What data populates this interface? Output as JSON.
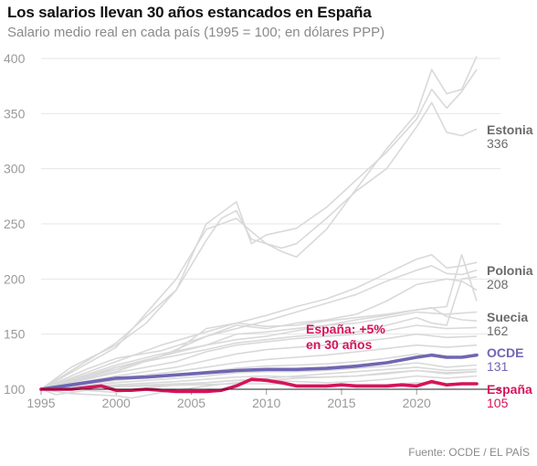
{
  "header": {
    "title": "Los salarios llevan 30 años estancados en España",
    "subtitle": "Salario medio real en cada país (1995 = 100; en dólares PPP)"
  },
  "footer": {
    "source": "Fuente: OCDE / EL PAÍS"
  },
  "annotation": {
    "line1": "España: +5%",
    "line2": "en 30 años"
  },
  "colors": {
    "background_line": "#d9d9d9",
    "oecd": "#6f66b3",
    "spain": "#d6135a",
    "label_gray": "#6b6b6b"
  },
  "chart_data": {
    "type": "line",
    "title": "Los salarios llevan 30 años estancados en España",
    "subtitle": "Salario medio real en cada país (1995 = 100; en dólares PPP)",
    "xlabel": "",
    "ylabel": "",
    "xlim": [
      1995,
      2024
    ],
    "ylim": [
      87,
      400
    ],
    "xticks": [
      1995,
      2000,
      2005,
      2010,
      2015,
      2020
    ],
    "yticks": [
      100,
      150,
      200,
      250,
      300,
      350,
      400
    ],
    "grid": true,
    "series": [
      {
        "name": "Estonia",
        "label_value": "336",
        "highlight": "gray",
        "x": [
          1995,
          1997,
          2000,
          2002,
          2004,
          2006,
          2007,
          2008,
          2009,
          2010,
          2011,
          2012,
          2014,
          2016,
          2018,
          2020,
          2021,
          2022,
          2023,
          2024
        ],
        "y": [
          100,
          120,
          140,
          160,
          190,
          235,
          255,
          262,
          236,
          232,
          228,
          232,
          255,
          280,
          300,
          338,
          360,
          333,
          330,
          336
        ]
      },
      {
        "name": "Polonia",
        "label_value": "208",
        "highlight": "gray",
        "x": [
          1995,
          1998,
          2000,
          2003,
          2006,
          2008,
          2010,
          2012,
          2014,
          2016,
          2018,
          2020,
          2021,
          2022,
          2023,
          2024
        ],
        "y": [
          100,
          118,
          128,
          135,
          148,
          155,
          162,
          170,
          178,
          186,
          198,
          208,
          212,
          205,
          204,
          208
        ]
      },
      {
        "name": "Suecia",
        "label_value": "162",
        "highlight": "gray",
        "x": [
          1995,
          1998,
          2000,
          2003,
          2006,
          2008,
          2010,
          2012,
          2014,
          2016,
          2018,
          2020,
          2021,
          2022,
          2023,
          2024
        ],
        "y": [
          100,
          110,
          120,
          130,
          140,
          145,
          148,
          153,
          158,
          163,
          167,
          172,
          174,
          166,
          163,
          162
        ]
      },
      {
        "name": "OCDE",
        "label_value": "131",
        "highlight": "oecd",
        "x": [
          1995,
          1997,
          2000,
          2002,
          2004,
          2006,
          2008,
          2010,
          2012,
          2014,
          2016,
          2018,
          2020,
          2021,
          2022,
          2023,
          2024
        ],
        "y": [
          100,
          104,
          110,
          111,
          113,
          115,
          117,
          118,
          118,
          119,
          121,
          124,
          129,
          131,
          129,
          129,
          131
        ]
      },
      {
        "name": "España",
        "label_value": "105",
        "highlight": "spain",
        "x": [
          1995,
          1997,
          1999,
          2000,
          2001,
          2002,
          2003,
          2004,
          2005,
          2006,
          2007,
          2008,
          2009,
          2010,
          2011,
          2012,
          2013,
          2014,
          2015,
          2016,
          2017,
          2018,
          2019,
          2020,
          2021,
          2022,
          2023,
          2024
        ],
        "y": [
          100,
          100,
          103,
          99,
          99,
          100,
          99,
          98,
          98,
          98,
          99,
          103,
          109,
          108,
          106,
          103,
          103,
          103,
          104,
          103,
          103,
          103,
          104,
          103,
          107,
          104,
          105,
          105
        ]
      },
      {
        "name": "",
        "highlight": "gray",
        "x": [
          1995,
          2000,
          2004,
          2006,
          2008,
          2009,
          2010,
          2012,
          2014,
          2016,
          2018,
          2020,
          2021,
          2022,
          2023,
          2024
        ],
        "y": [
          100,
          142,
          190,
          250,
          270,
          232,
          240,
          246,
          265,
          290,
          315,
          345,
          372,
          355,
          370,
          390
        ]
      },
      {
        "name": "",
        "highlight": "gray",
        "x": [
          1995,
          2000,
          2004,
          2006,
          2008,
          2009,
          2010,
          2011,
          2012,
          2014,
          2016,
          2018,
          2020,
          2021,
          2022,
          2023,
          2024
        ],
        "y": [
          100,
          138,
          200,
          245,
          255,
          243,
          232,
          225,
          220,
          245,
          282,
          318,
          350,
          390,
          368,
          372,
          402
        ]
      },
      {
        "name": "",
        "highlight": "gray",
        "x": [
          1995,
          2000,
          2003,
          2006,
          2008,
          2010,
          2012,
          2014,
          2016,
          2018,
          2020,
          2021,
          2022,
          2023,
          2024
        ],
        "y": [
          100,
          125,
          140,
          152,
          160,
          167,
          175,
          182,
          192,
          205,
          218,
          222,
          210,
          212,
          215
        ]
      },
      {
        "name": "",
        "highlight": "gray",
        "x": [
          1995,
          2000,
          2003,
          2006,
          2008,
          2010,
          2012,
          2014,
          2016,
          2018,
          2020,
          2022,
          2023,
          2024
        ],
        "y": [
          100,
          118,
          130,
          148,
          158,
          155,
          160,
          163,
          168,
          180,
          195,
          200,
          198,
          190
        ]
      },
      {
        "name": "",
        "highlight": "gray",
        "x": [
          1995,
          2000,
          2003,
          2006,
          2008,
          2010,
          2012,
          2014,
          2016,
          2018,
          2020,
          2022,
          2024
        ],
        "y": [
          100,
          122,
          132,
          140,
          150,
          152,
          155,
          158,
          160,
          165,
          170,
          168,
          170
        ]
      },
      {
        "name": "",
        "highlight": "gray",
        "x": [
          1995,
          2000,
          2004,
          2006,
          2008,
          2010,
          2012,
          2014,
          2016,
          2018,
          2020,
          2022,
          2024
        ],
        "y": [
          100,
          115,
          125,
          134,
          140,
          143,
          146,
          148,
          150,
          153,
          158,
          155,
          156
        ]
      },
      {
        "name": "",
        "highlight": "gray",
        "x": [
          1995,
          2000,
          2004,
          2006,
          2008,
          2010,
          2012,
          2014,
          2016,
          2018,
          2020,
          2022,
          2024
        ],
        "y": [
          100,
          112,
          120,
          126,
          132,
          136,
          138,
          140,
          143,
          146,
          150,
          147,
          148
        ]
      },
      {
        "name": "",
        "highlight": "gray",
        "x": [
          1995,
          2000,
          2004,
          2006,
          2008,
          2010,
          2012,
          2014,
          2016,
          2018,
          2020,
          2022,
          2024
        ],
        "y": [
          100,
          110,
          116,
          120,
          124,
          127,
          129,
          131,
          134,
          137,
          140,
          138,
          140
        ]
      },
      {
        "name": "",
        "highlight": "gray",
        "x": [
          1995,
          2000,
          2004,
          2006,
          2008,
          2010,
          2012,
          2014,
          2016,
          2018,
          2020,
          2022,
          2024
        ],
        "y": [
          100,
          108,
          113,
          116,
          119,
          121,
          122,
          123,
          125,
          128,
          132,
          128,
          130
        ]
      },
      {
        "name": "",
        "highlight": "gray",
        "x": [
          1995,
          2000,
          2004,
          2006,
          2008,
          2010,
          2012,
          2014,
          2016,
          2018,
          2020,
          2022,
          2024
        ],
        "y": [
          100,
          106,
          110,
          112,
          115,
          116,
          116,
          117,
          119,
          121,
          124,
          120,
          122
        ]
      },
      {
        "name": "",
        "highlight": "gray",
        "x": [
          1995,
          2000,
          2004,
          2006,
          2008,
          2010,
          2012,
          2014,
          2016,
          2018,
          2020,
          2022,
          2024
        ],
        "y": [
          100,
          104,
          107,
          109,
          111,
          112,
          111,
          111,
          112,
          114,
          117,
          114,
          116
        ]
      },
      {
        "name": "",
        "highlight": "gray",
        "x": [
          1995,
          2000,
          2004,
          2006,
          2008,
          2010,
          2012,
          2014,
          2016,
          2018,
          2020,
          2022,
          2024
        ],
        "y": [
          100,
          103,
          105,
          106,
          108,
          108,
          107,
          106,
          107,
          109,
          112,
          110,
          112
        ]
      },
      {
        "name": "",
        "highlight": "gray",
        "x": [
          1995,
          1996,
          1998,
          2000,
          2002,
          2004,
          2006,
          2008,
          2010,
          2012,
          2014,
          2016,
          2018,
          2020,
          2022,
          2024
        ],
        "y": [
          100,
          95,
          99,
          97,
          101,
          104,
          106,
          108,
          110,
          112,
          114,
          116,
          118,
          120,
          117,
          118
        ]
      },
      {
        "name": "",
        "highlight": "gray",
        "x": [
          1995,
          1997,
          2000,
          2001,
          2003,
          2006,
          2008,
          2010,
          2012,
          2014,
          2016,
          2018,
          2020,
          2022,
          2024
        ],
        "y": [
          100,
          96,
          94,
          92,
          97,
          103,
          106,
          108,
          110,
          111,
          112,
          115,
          117,
          115,
          116
        ]
      },
      {
        "name": "",
        "highlight": "gray",
        "x": [
          1995,
          2000,
          2003,
          2006,
          2008,
          2010,
          2012,
          2014,
          2016,
          2018,
          2020,
          2021,
          2022,
          2023,
          2024
        ],
        "y": [
          100,
          120,
          128,
          136,
          142,
          145,
          148,
          150,
          152,
          158,
          165,
          160,
          158,
          200,
          202
        ]
      },
      {
        "name": "",
        "highlight": "gray",
        "x": [
          1995,
          2000,
          2004,
          2006,
          2008,
          2010,
          2012,
          2014,
          2016,
          2018,
          2020,
          2022,
          2023,
          2024
        ],
        "y": [
          100,
          116,
          135,
          155,
          160,
          157,
          158,
          162,
          165,
          168,
          172,
          175,
          222,
          180
        ]
      },
      {
        "name": "",
        "highlight": "gray",
        "x": [
          1995,
          1999,
          2002,
          2005,
          2008,
          2010,
          2012,
          2014,
          2016,
          2018,
          2020,
          2022,
          2024
        ],
        "y": [
          100,
          102,
          103,
          104,
          105,
          105,
          104,
          103,
          104,
          104,
          106,
          104,
          105
        ]
      }
    ]
  }
}
